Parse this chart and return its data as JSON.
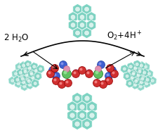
{
  "background_color": "#ffffff",
  "fig_width": 2.35,
  "fig_height": 1.89,
  "dpi": 100,
  "text_left": "2 H$_2$O",
  "text_right": "O$_2$+4H$^+$",
  "teal_outer": "#7dd4c3",
  "teal_inner": "#b8eae0",
  "teal_edge": "#5ab0a0",
  "blue_atom": "#4060d0",
  "red_atom": "#d03030",
  "pink_atom": "#e090b0",
  "green_atom": "#50b050",
  "white_ring": "#e8f8f4",
  "arrow_color": "#000000"
}
